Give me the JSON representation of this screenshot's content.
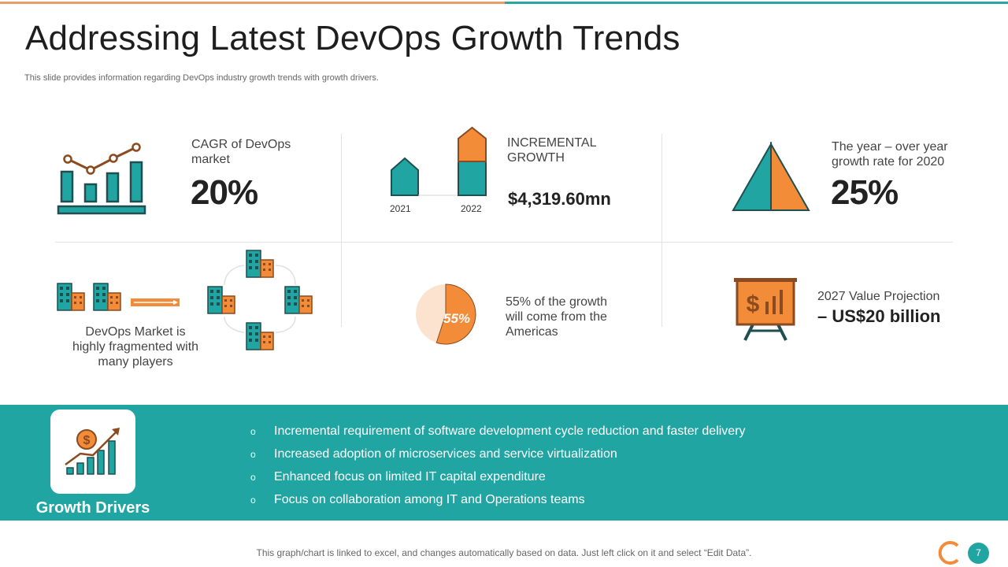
{
  "header": {
    "title": "Addressing Latest DevOps Growth Trends",
    "subtitle": "This slide provides information regarding DevOps industry growth trends with growth drivers."
  },
  "stats": {
    "cagr": {
      "label": "CAGR of DevOps market",
      "value": "20%"
    },
    "incremental": {
      "label": "INCREMENTAL GROWTH",
      "value": "$4,319.60mn",
      "year_a": "2021",
      "year_b": "2022"
    },
    "yoy": {
      "label": "The year – over year growth rate for 2020",
      "value": "25%"
    },
    "fragmented": {
      "label": "DevOps Market is highly fragmented with many players"
    },
    "americas": {
      "label": "55% of the growth will come from the Americas",
      "pie_value": "55%",
      "pie_fraction": 0.55
    },
    "projection": {
      "label": "2027 Value Projection",
      "value": "– US$20 billion"
    }
  },
  "drivers": {
    "title": "Growth Drivers",
    "bullet_symbol": "o",
    "items": [
      "Incremental  requirement of software development cycle reduction and faster delivery",
      "Increased adoption of microservices and service virtualization",
      "Enhanced focus on limited IT  capital expenditure",
      "Focus on collaboration among IT  and Operations teams"
    ]
  },
  "footer": {
    "note": "This graph/chart is linked to excel, and changes automatically based on data. Just left click on it and select “Edit Data”.",
    "page_number": "7"
  },
  "colors": {
    "teal": "#20a5a3",
    "orange": "#f28c38",
    "dark_teal": "#1f7f7f",
    "brown": "#8b4a1f"
  }
}
